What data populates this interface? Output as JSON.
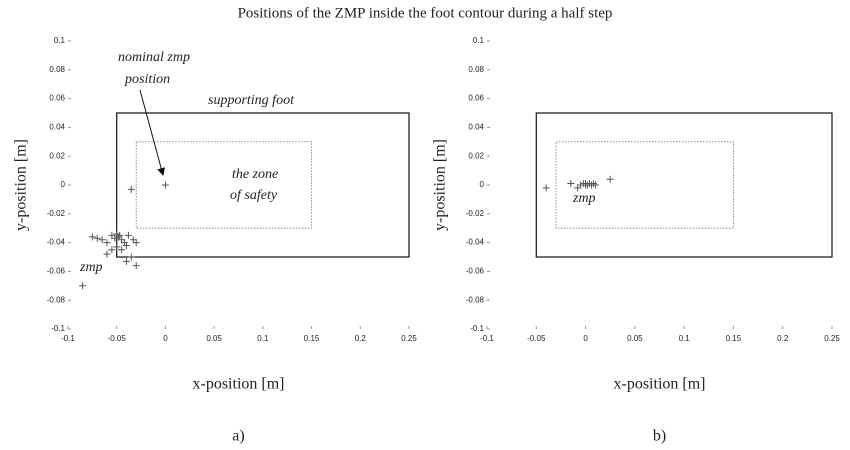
{
  "title": "Positions of the ZMP inside the foot contour during a half step",
  "chart_data": [
    {
      "type": "scatter",
      "panel": "a)",
      "xlabel": "x-position [m]",
      "ylabel": "y-position [m]",
      "xlim": [
        -0.1,
        0.25
      ],
      "ylim": [
        -0.1,
        0.1
      ],
      "xticks": [
        -0.1,
        -0.05,
        0,
        0.05,
        0.1,
        0.15,
        0.2,
        0.25
      ],
      "yticks": [
        -0.1,
        -0.08,
        -0.06,
        -0.04,
        -0.02,
        0,
        0.02,
        0.04,
        0.06,
        0.08,
        0.1
      ],
      "color": "#555555",
      "x": [
        -0.085,
        -0.035,
        -0.075,
        -0.07,
        -0.065,
        -0.06,
        -0.055,
        -0.05,
        -0.048,
        -0.045,
        -0.042,
        -0.04,
        -0.045,
        -0.05,
        -0.055,
        -0.04,
        -0.035,
        -0.03,
        -0.033,
        -0.038,
        -0.06,
        -0.03,
        -0.047,
        -0.052
      ],
      "values": [
        -0.07,
        -0.003,
        -0.036,
        -0.037,
        -0.038,
        -0.04,
        -0.035,
        -0.034,
        -0.036,
        -0.038,
        -0.04,
        -0.042,
        -0.045,
        -0.043,
        -0.045,
        -0.053,
        -0.05,
        -0.056,
        -0.038,
        -0.035,
        -0.048,
        -0.04,
        -0.035,
        -0.037
      ],
      "annotation": "zmp",
      "nominal": {
        "label": [
          "nominal zmp",
          "position"
        ],
        "x": 0,
        "y": 0
      },
      "regions": [
        {
          "label": [
            "supporting foot"
          ],
          "style": "solid",
          "x": [
            -0.05,
            0.25
          ],
          "y": [
            -0.05,
            0.05
          ]
        },
        {
          "label": [
            "the zone",
            "of safety"
          ],
          "style": "dotted",
          "x": [
            -0.03,
            0.15
          ],
          "y": [
            -0.03,
            0.03
          ]
        }
      ]
    },
    {
      "type": "scatter",
      "panel": "b)",
      "xlabel": "x-position [m]",
      "ylabel": "y-position [m]",
      "xlim": [
        -0.1,
        0.25
      ],
      "ylim": [
        -0.1,
        0.1
      ],
      "xticks": [
        -0.1,
        -0.05,
        0,
        0.05,
        0.1,
        0.15,
        0.2,
        0.25
      ],
      "yticks": [
        -0.1,
        -0.08,
        -0.06,
        -0.04,
        -0.02,
        0,
        0.02,
        0.04,
        0.06,
        0.08,
        0.1
      ],
      "color": "#555555",
      "x": [
        -0.04,
        -0.015,
        -0.005,
        -0.002,
        0,
        0.002,
        0.004,
        0.006,
        0.008,
        0.01,
        0.025,
        0,
        -0.008
      ],
      "values": [
        -0.002,
        0.001,
        0,
        0.001,
        0.001,
        0,
        0.001,
        0,
        0.001,
        0,
        0.004,
        0,
        -0.002
      ],
      "annotation": "zmp",
      "regions": [
        {
          "style": "solid",
          "x": [
            -0.05,
            0.25
          ],
          "y": [
            -0.05,
            0.05
          ]
        },
        {
          "style": "dotted",
          "x": [
            -0.03,
            0.15
          ],
          "y": [
            -0.03,
            0.03
          ]
        }
      ]
    }
  ]
}
